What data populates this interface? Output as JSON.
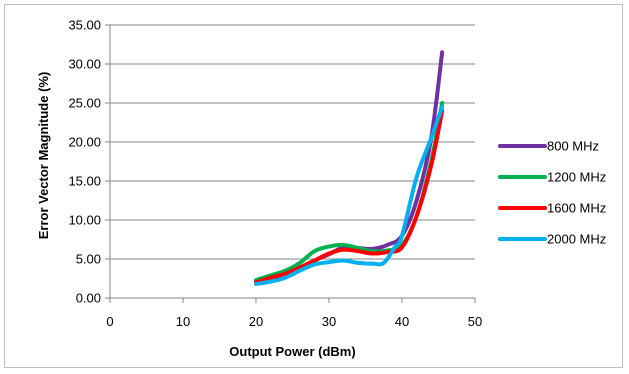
{
  "chart_data": {
    "type": "line",
    "title": "",
    "xlabel": "Output Power (dBm)",
    "ylabel": "Error Vector Magnitude (%)",
    "xlim": [
      0,
      50
    ],
    "ylim": [
      0,
      35
    ],
    "x_ticks": [
      0,
      10,
      20,
      30,
      40,
      50
    ],
    "y_ticks": [
      0,
      5,
      10,
      15,
      20,
      25,
      30,
      35
    ],
    "x_tick_labels": [
      "0",
      "10",
      "20",
      "30",
      "40",
      "50"
    ],
    "y_tick_labels": [
      "0.00",
      "5.00",
      "10.00",
      "15.00",
      "20.00",
      "25.00",
      "30.00",
      "35.00"
    ],
    "grid": "horizontal",
    "legend_position": "right",
    "series": [
      {
        "name": "800 MHz",
        "color": "#7030a0",
        "points": [
          [
            20,
            2.2
          ],
          [
            22,
            2.6
          ],
          [
            24,
            3.0
          ],
          [
            26,
            3.8
          ],
          [
            28,
            4.8
          ],
          [
            30,
            5.6
          ],
          [
            32,
            6.5
          ],
          [
            34,
            6.4
          ],
          [
            36,
            6.3
          ],
          [
            38,
            6.8
          ],
          [
            40,
            8.0
          ],
          [
            42,
            12.5
          ],
          [
            44,
            20.5
          ],
          [
            45.5,
            31.5
          ]
        ]
      },
      {
        "name": "1200 MHz",
        "color": "#00b050",
        "points": [
          [
            20,
            2.3
          ],
          [
            22,
            2.9
          ],
          [
            24,
            3.5
          ],
          [
            26,
            4.5
          ],
          [
            28,
            6.0
          ],
          [
            30,
            6.6
          ],
          [
            32,
            6.8
          ],
          [
            34,
            6.4
          ],
          [
            36,
            6.0
          ],
          [
            38,
            6.1
          ],
          [
            40,
            6.8
          ],
          [
            42,
            10.5
          ],
          [
            44,
            17.5
          ],
          [
            45.5,
            25.0
          ]
        ]
      },
      {
        "name": "1600 MHz",
        "color": "#ff0000",
        "points": [
          [
            20,
            2.0
          ],
          [
            22,
            2.6
          ],
          [
            24,
            3.1
          ],
          [
            26,
            3.9
          ],
          [
            28,
            4.8
          ],
          [
            30,
            5.7
          ],
          [
            32,
            6.2
          ],
          [
            34,
            6.0
          ],
          [
            36,
            5.7
          ],
          [
            38,
            5.9
          ],
          [
            40,
            6.5
          ],
          [
            42,
            10.5
          ],
          [
            44,
            17.0
          ],
          [
            45.5,
            24.0
          ]
        ]
      },
      {
        "name": "2000 MHz",
        "color": "#00b0f0",
        "points": [
          [
            20,
            1.8
          ],
          [
            22,
            2.1
          ],
          [
            24,
            2.6
          ],
          [
            26,
            3.5
          ],
          [
            28,
            4.3
          ],
          [
            30,
            4.6
          ],
          [
            32,
            4.8
          ],
          [
            34,
            4.5
          ],
          [
            36,
            4.4
          ],
          [
            37.5,
            4.5
          ],
          [
            39,
            6.5
          ],
          [
            40,
            8.0
          ],
          [
            42,
            15.5
          ],
          [
            44,
            20.5
          ],
          [
            45.5,
            24.5
          ]
        ]
      }
    ]
  }
}
